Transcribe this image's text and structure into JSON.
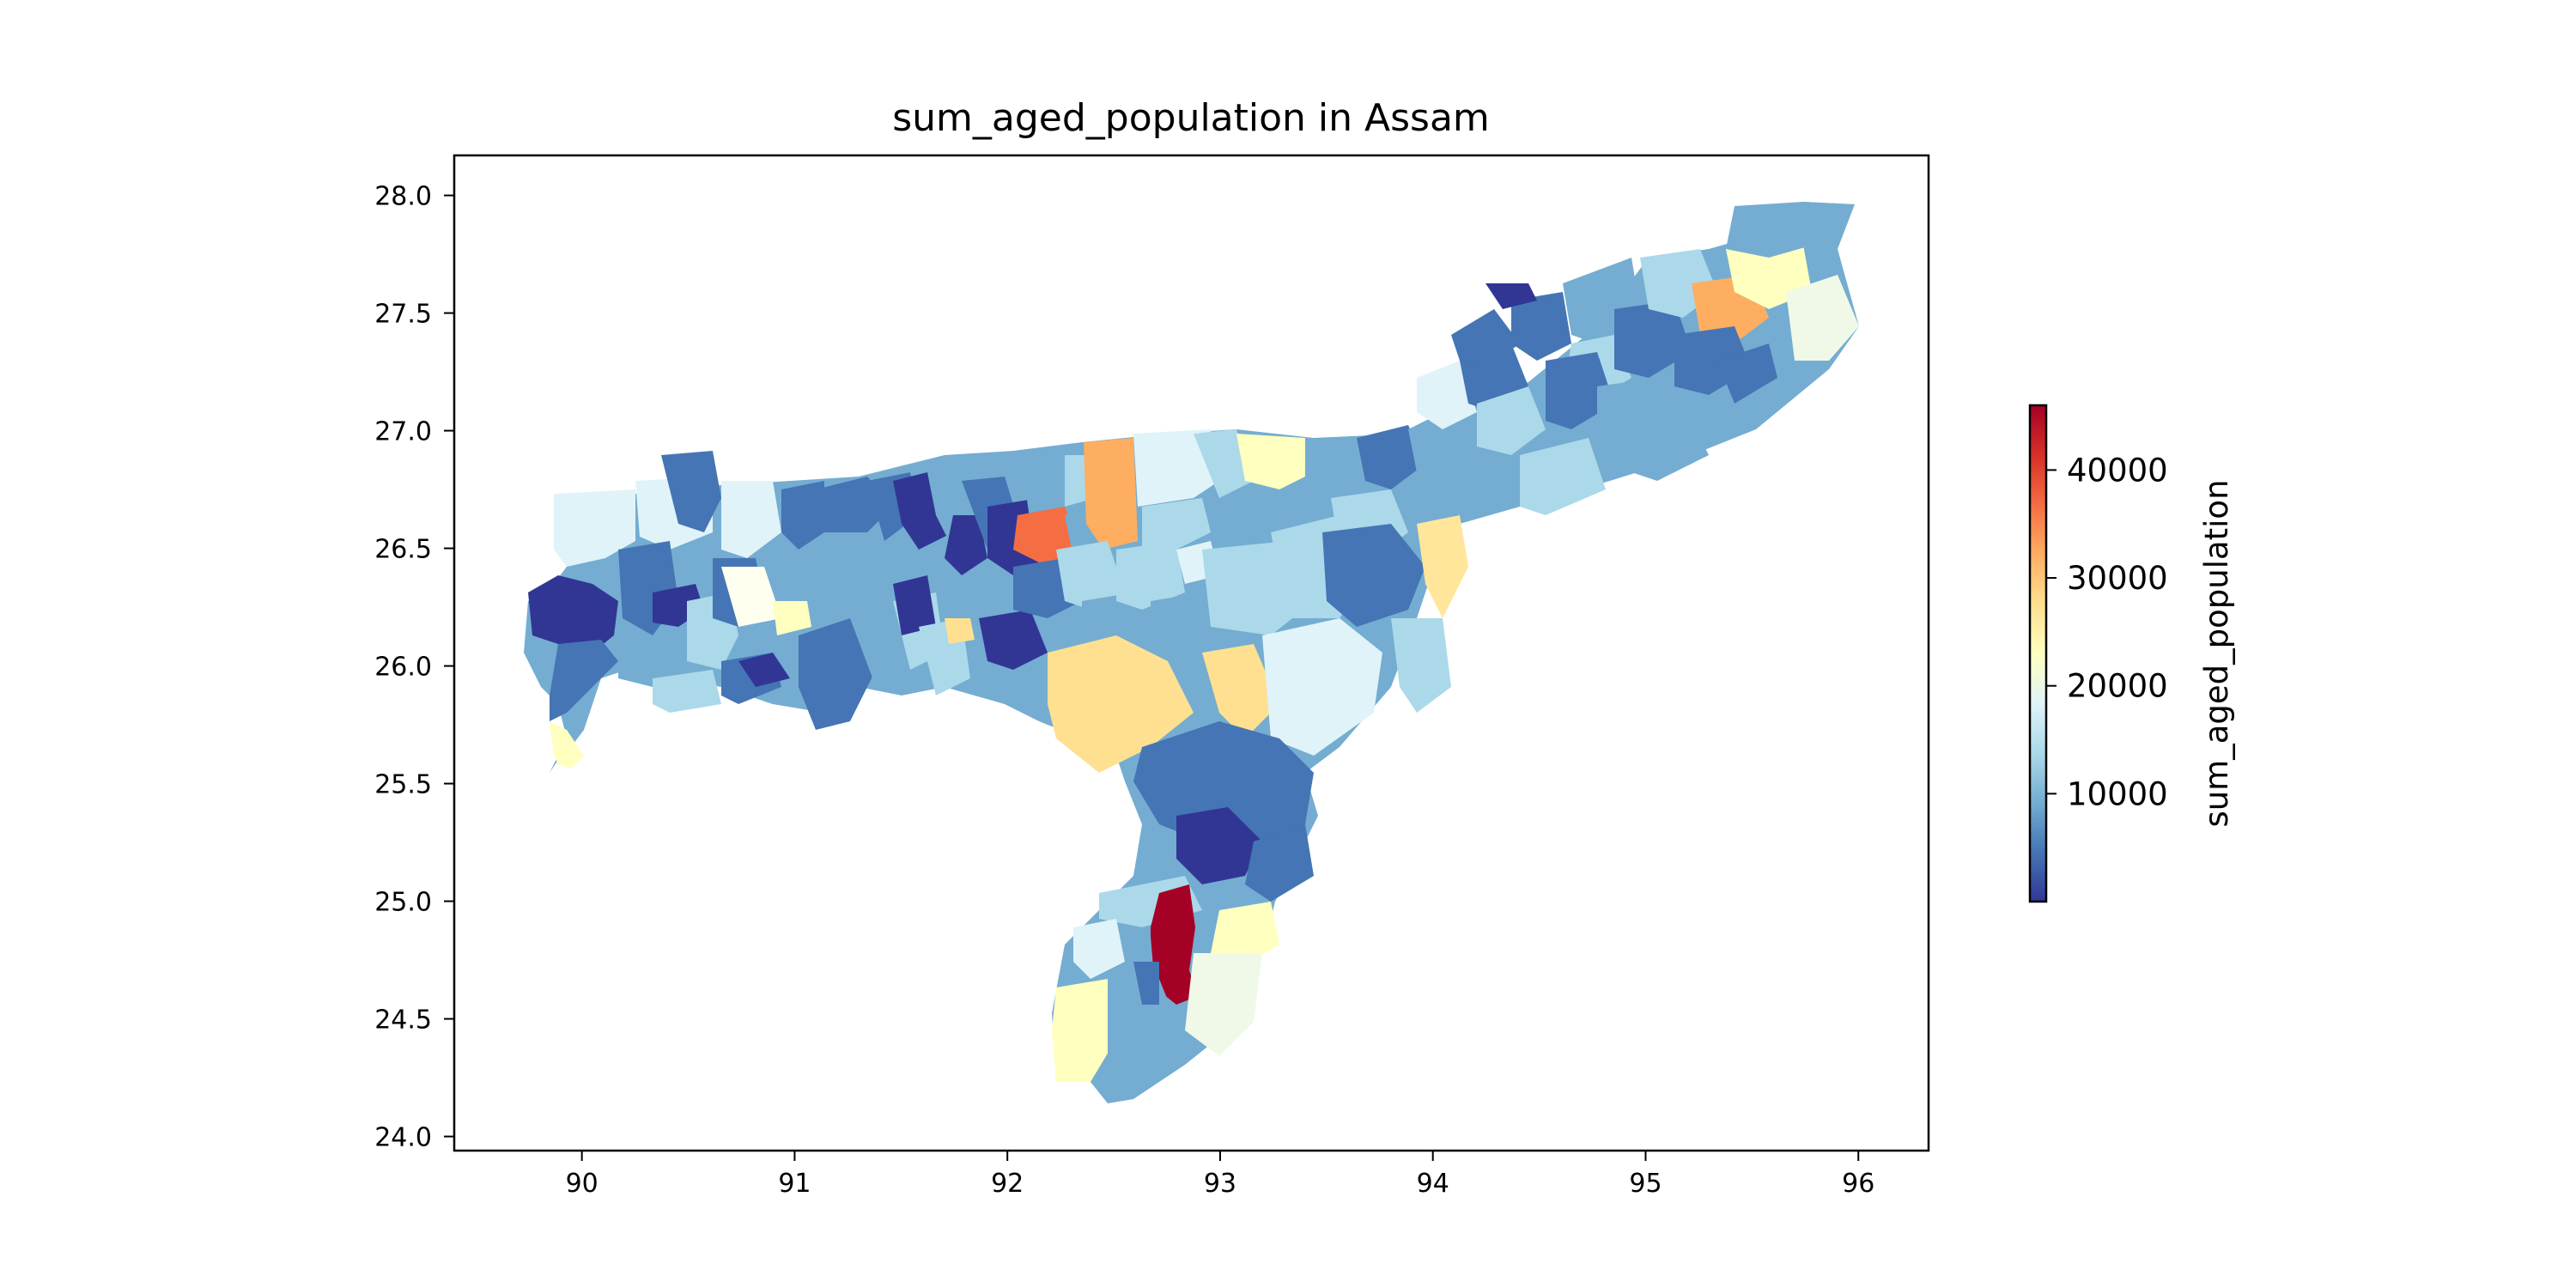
{
  "chart_data": {
    "type": "choropleth",
    "title": "sum_aged_population in Assam",
    "xlim": [
      89.4,
      96.33
    ],
    "ylim": [
      23.94,
      28.17
    ],
    "x_ticks": [
      90,
      91,
      92,
      93,
      94,
      95,
      96
    ],
    "y_ticks": [
      24.0,
      24.5,
      25.0,
      25.5,
      26.0,
      26.5,
      27.0,
      27.5,
      28.0
    ],
    "y_tick_labels": [
      "24.0",
      "24.5",
      "25.0",
      "25.5",
      "26.0",
      "26.5",
      "27.0",
      "27.5",
      "28.0"
    ],
    "colorbar": {
      "label": "sum_aged_population",
      "min": 0,
      "max": 46000,
      "ticks": [
        10000,
        20000,
        30000,
        40000
      ],
      "colormap": "RdYlBu_r",
      "stops": [
        "#313695",
        "#4575b4",
        "#74add1",
        "#abd9e9",
        "#e0f3f8",
        "#ffffbf",
        "#fee090",
        "#fdae61",
        "#f46d43",
        "#d73027",
        "#a50026"
      ]
    }
  }
}
